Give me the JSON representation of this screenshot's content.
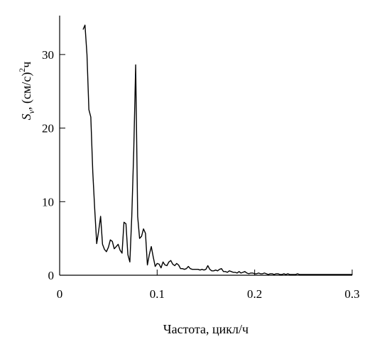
{
  "chart_data": {
    "type": "line",
    "xlabel": "Частота, цикл/ч",
    "ylabel": {
      "symbol": "S",
      "subscript": "v",
      "unit_before": ", (см/с)",
      "superscript": "2",
      "unit_after": "ч"
    },
    "xlim": [
      0,
      0.3
    ],
    "ylim": [
      0,
      35
    ],
    "xticks": [
      0,
      0.1,
      0.2,
      0.3
    ],
    "xtick_labels": [
      "0",
      "0.1",
      "0.2",
      "0.3"
    ],
    "yticks": [
      0,
      10,
      20,
      30
    ],
    "ytick_labels": [
      "0",
      "10",
      "20",
      "30"
    ],
    "grid": false,
    "series": [
      {
        "x": [
          0.024,
          0.026,
          0.028,
          0.03,
          0.032,
          0.034,
          0.036,
          0.038,
          0.04,
          0.042,
          0.044,
          0.046,
          0.048,
          0.05,
          0.052,
          0.054,
          0.056,
          0.058,
          0.06,
          0.062,
          0.064,
          0.066,
          0.068,
          0.07,
          0.072,
          0.074,
          0.076,
          0.078,
          0.08,
          0.082,
          0.084,
          0.086,
          0.088,
          0.09,
          0.092,
          0.094,
          0.096,
          0.098,
          0.1,
          0.102,
          0.104,
          0.106,
          0.108,
          0.11,
          0.112,
          0.114,
          0.116,
          0.118,
          0.12,
          0.122,
          0.124,
          0.126,
          0.128,
          0.13,
          0.132,
          0.134,
          0.136,
          0.138,
          0.14,
          0.142,
          0.144,
          0.146,
          0.148,
          0.15,
          0.152,
          0.154,
          0.156,
          0.158,
          0.16,
          0.162,
          0.164,
          0.166,
          0.168,
          0.17,
          0.172,
          0.174,
          0.176,
          0.178,
          0.18,
          0.182,
          0.184,
          0.186,
          0.188,
          0.19,
          0.192,
          0.194,
          0.196,
          0.198,
          0.2,
          0.202,
          0.204,
          0.206,
          0.208,
          0.21,
          0.212,
          0.214,
          0.216,
          0.218,
          0.22,
          0.222,
          0.224,
          0.226,
          0.228,
          0.23,
          0.232,
          0.234,
          0.236,
          0.238,
          0.24,
          0.242,
          0.244,
          0.246,
          0.248,
          0.25,
          0.252,
          0.254,
          0.256,
          0.258,
          0.26,
          0.262,
          0.264,
          0.266,
          0.268,
          0.27,
          0.272,
          0.274,
          0.276,
          0.278,
          0.28,
          0.282,
          0.284,
          0.286,
          0.288,
          0.29,
          0.292,
          0.294,
          0.296,
          0.298,
          0.3
        ],
        "values": [
          33.4,
          34.0,
          30.0,
          22.5,
          21.5,
          14.0,
          9.0,
          4.3,
          6.0,
          8.0,
          4.2,
          3.5,
          3.2,
          3.8,
          4.8,
          4.6,
          3.6,
          3.9,
          4.2,
          3.4,
          3.0,
          7.2,
          7.0,
          2.8,
          1.8,
          8.0,
          17.0,
          28.6,
          8.0,
          5.0,
          5.3,
          6.3,
          5.7,
          1.4,
          2.8,
          3.9,
          2.5,
          1.2,
          1.6,
          1.5,
          1.0,
          1.8,
          1.4,
          1.3,
          1.8,
          2.0,
          1.5,
          1.3,
          1.6,
          1.4,
          0.9,
          0.9,
          0.8,
          0.9,
          1.2,
          0.9,
          0.8,
          0.8,
          0.8,
          0.8,
          0.7,
          0.8,
          0.7,
          0.8,
          1.3,
          0.8,
          0.6,
          0.6,
          0.7,
          0.6,
          0.8,
          0.9,
          0.5,
          0.5,
          0.4,
          0.6,
          0.5,
          0.4,
          0.4,
          0.3,
          0.5,
          0.3,
          0.4,
          0.5,
          0.3,
          0.2,
          0.3,
          0.3,
          0.2,
          0.2,
          0.3,
          0.2,
          0.2,
          0.3,
          0.2,
          0.1,
          0.2,
          0.2,
          0.1,
          0.2,
          0.2,
          0.1,
          0.1,
          0.2,
          0.1,
          0.2,
          0.1,
          0.1,
          0.1,
          0.1,
          0.2,
          0.1,
          0.1,
          0.1,
          0.1,
          0.1,
          0.1,
          0.1,
          0.1,
          0.1,
          0.1,
          0.1,
          0.1,
          0.1,
          0.1,
          0.1,
          0.1,
          0.1,
          0.1,
          0.1,
          0.1,
          0.1,
          0.1,
          0.1,
          0.1,
          0.1,
          0.1,
          0.1,
          0.1
        ]
      }
    ]
  }
}
